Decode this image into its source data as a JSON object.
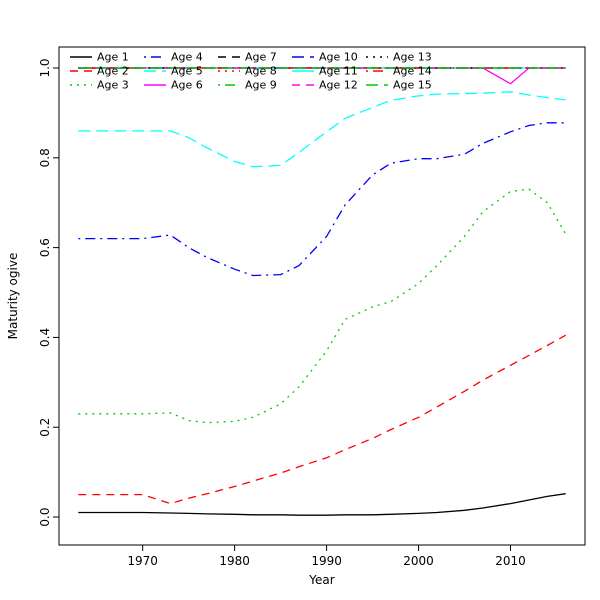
{
  "figure": {
    "background": "#FFFFFF"
  },
  "chart_data": {
    "type": "line",
    "title": "",
    "xlabel": "Year",
    "ylabel": "Maturity ogive",
    "xlim": [
      1960.9,
      2018.1
    ],
    "ylim": [
      -0.0623,
      1.0468
    ],
    "x_ticks": [
      "1970",
      "1980",
      "1990",
      "2000",
      "2010"
    ],
    "y_ticks": [
      "0.0",
      "0.2",
      "0.4",
      "0.6",
      "0.8",
      "1.0"
    ],
    "grid": false,
    "legend_position": "top-left",
    "legend_columns": 5,
    "legend_rows": 3,
    "x": [
      1963,
      1965,
      1967,
      1970,
      1973,
      1975,
      1977,
      1980,
      1982,
      1985,
      1987,
      1990,
      1992,
      1995,
      1997,
      2000,
      2002,
      2005,
      2007,
      2010,
      2012,
      2014,
      2016
    ],
    "series": [
      {
        "name": "Age 1",
        "color": "#000000",
        "style": "solid",
        "values": [
          0.01,
          0.01,
          0.01,
          0.01,
          0.009,
          0.008,
          0.007,
          0.006,
          0.005,
          0.005,
          0.004,
          0.004,
          0.005,
          0.005,
          0.006,
          0.008,
          0.01,
          0.015,
          0.02,
          0.03,
          0.038,
          0.046,
          0.052
        ]
      },
      {
        "name": "Age 2",
        "color": "#FF0000",
        "style": "dashed",
        "values": [
          0.05,
          0.05,
          0.05,
          0.05,
          0.03,
          0.042,
          0.052,
          0.068,
          0.08,
          0.098,
          0.112,
          0.132,
          0.15,
          0.175,
          0.195,
          0.222,
          0.245,
          0.28,
          0.305,
          0.338,
          0.36,
          0.382,
          0.405
        ]
      },
      {
        "name": "Age 3",
        "color": "#00CD00",
        "style": "dotted",
        "values": [
          0.23,
          0.23,
          0.23,
          0.23,
          0.232,
          0.215,
          0.21,
          0.213,
          0.222,
          0.252,
          0.29,
          0.37,
          0.44,
          0.468,
          0.48,
          0.52,
          0.56,
          0.625,
          0.68,
          0.725,
          0.73,
          0.7,
          0.63
        ]
      },
      {
        "name": "Age 4",
        "color": "#0000FF",
        "style": "dotdash",
        "values": [
          0.62,
          0.62,
          0.62,
          0.62,
          0.628,
          0.6,
          0.578,
          0.552,
          0.538,
          0.54,
          0.56,
          0.625,
          0.695,
          0.762,
          0.788,
          0.798,
          0.798,
          0.808,
          0.832,
          0.858,
          0.872,
          0.878,
          0.878
        ]
      },
      {
        "name": "Age 5",
        "color": "#00FFFF",
        "style": "longdash",
        "values": [
          0.86,
          0.86,
          0.86,
          0.86,
          0.86,
          0.845,
          0.822,
          0.792,
          0.78,
          0.783,
          0.812,
          0.858,
          0.888,
          0.912,
          0.928,
          0.938,
          0.942,
          0.943,
          0.944,
          0.947,
          0.94,
          0.934,
          0.929
        ]
      },
      {
        "name": "Age 6",
        "color": "#FF00FF",
        "style": "solid",
        "values": [
          1,
          1,
          1,
          1,
          1,
          1,
          1,
          1,
          1,
          1,
          1,
          1,
          1,
          1,
          1,
          1,
          1,
          1,
          1,
          0.965,
          1,
          1,
          1
        ]
      },
      {
        "name": "Age 7",
        "color": "#000000",
        "style": "dashed",
        "constant": 1.0
      },
      {
        "name": "Age 8",
        "color": "#FF0000",
        "style": "dotted",
        "constant": 1.0
      },
      {
        "name": "Age 9",
        "color": "#00CD00",
        "style": "dotdash",
        "constant": 1.0
      },
      {
        "name": "Age 10",
        "color": "#0000FF",
        "style": "longdash",
        "constant": 1.0
      },
      {
        "name": "Age 11",
        "color": "#00FFFF",
        "style": "solid",
        "constant": 1.0
      },
      {
        "name": "Age 12",
        "color": "#FF00FF",
        "style": "dashed",
        "constant": 1.0
      },
      {
        "name": "Age 13",
        "color": "#000000",
        "style": "dotted",
        "constant": 1.0
      },
      {
        "name": "Age 14",
        "color": "#FF0000",
        "style": "dotdash",
        "constant": 1.0
      },
      {
        "name": "Age 15",
        "color": "#00CD00",
        "style": "longdash",
        "constant": 1.0
      }
    ]
  }
}
